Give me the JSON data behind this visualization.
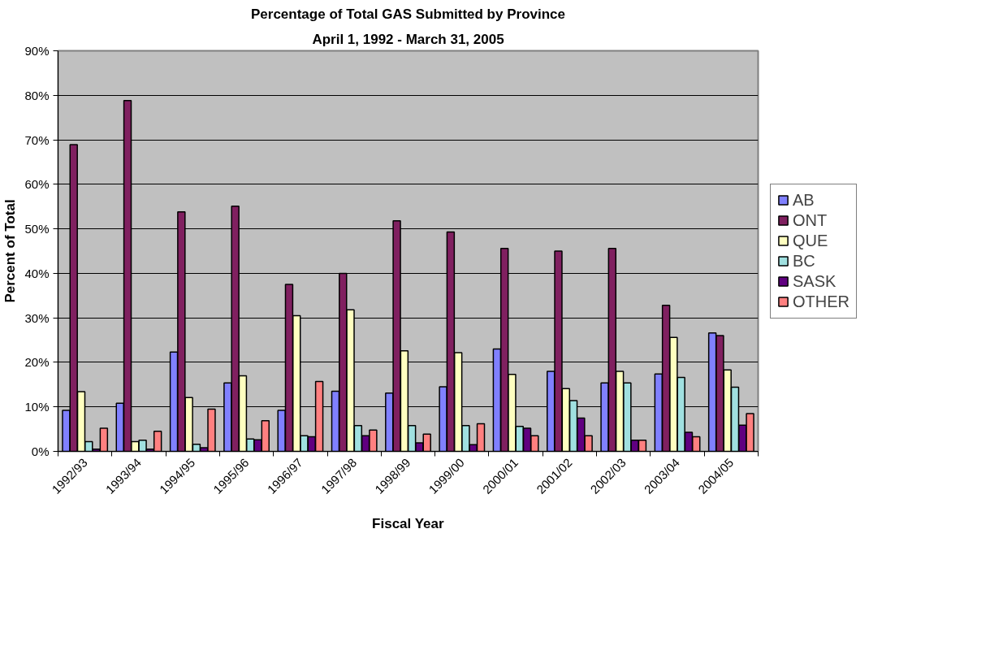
{
  "chart_data": {
    "type": "bar",
    "title": "Percentage of Total GAS Submitted by Province",
    "subtitle": "April 1, 1992 - March 31, 2005",
    "xlabel": "Fiscal Year",
    "ylabel": "Percent of Total",
    "categories": [
      "1992/93",
      "1993/94",
      "1994/95",
      "1995/96",
      "1996/97",
      "1997/98",
      "1998/99",
      "1999/00",
      "2000/01",
      "2001/02",
      "2002/03",
      "2003/04",
      "2004/05"
    ],
    "series": [
      {
        "name": "AB",
        "color": "#8080ff",
        "values": [
          9.2,
          10.8,
          22.3,
          15.4,
          9.2,
          13.5,
          13.1,
          14.5,
          23,
          18,
          15.4,
          17.4,
          26.6
        ]
      },
      {
        "name": "ONT",
        "color": "#802060",
        "values": [
          68.9,
          78.8,
          53.8,
          55.1,
          37.5,
          40,
          51.8,
          49.3,
          45.6,
          45,
          45.6,
          32.8,
          26
        ]
      },
      {
        "name": "QUE",
        "color": "#ffffc0",
        "values": [
          13.4,
          2.2,
          12.1,
          17,
          30.5,
          31.8,
          22.6,
          22.2,
          17.3,
          14.1,
          18,
          25.6,
          18.3
        ]
      },
      {
        "name": "BC",
        "color": "#a0e0e0",
        "values": [
          2.2,
          2.5,
          1.6,
          2.8,
          3.5,
          5.8,
          5.8,
          5.8,
          5.6,
          11.4,
          15.4,
          16.6,
          14.4
        ]
      },
      {
        "name": "SASK",
        "color": "#600080",
        "values": [
          0.5,
          0.5,
          0.8,
          2.6,
          3.3,
          3.5,
          1.9,
          1.5,
          5.2,
          7.5,
          2.5,
          4.3,
          5.9
        ]
      },
      {
        "name": "OTHER",
        "color": "#ff8080",
        "values": [
          5.2,
          4.5,
          9.5,
          6.9,
          15.7,
          4.8,
          3.9,
          6.2,
          3.5,
          3.5,
          2.5,
          3.3,
          8.5
        ]
      }
    ],
    "ylim": [
      0,
      90
    ],
    "yticks": [
      {
        "value": 0,
        "label": "0%"
      },
      {
        "value": 10,
        "label": "10%"
      },
      {
        "value": 20,
        "label": "20%"
      },
      {
        "value": 30,
        "label": "30%"
      },
      {
        "value": 40,
        "label": "40%"
      },
      {
        "value": 50,
        "label": "50%"
      },
      {
        "value": 60,
        "label": "60%"
      },
      {
        "value": 70,
        "label": "70%"
      },
      {
        "value": 80,
        "label": "80%"
      },
      {
        "value": 90,
        "label": "90%"
      }
    ],
    "grid": "y",
    "legend": "right"
  }
}
